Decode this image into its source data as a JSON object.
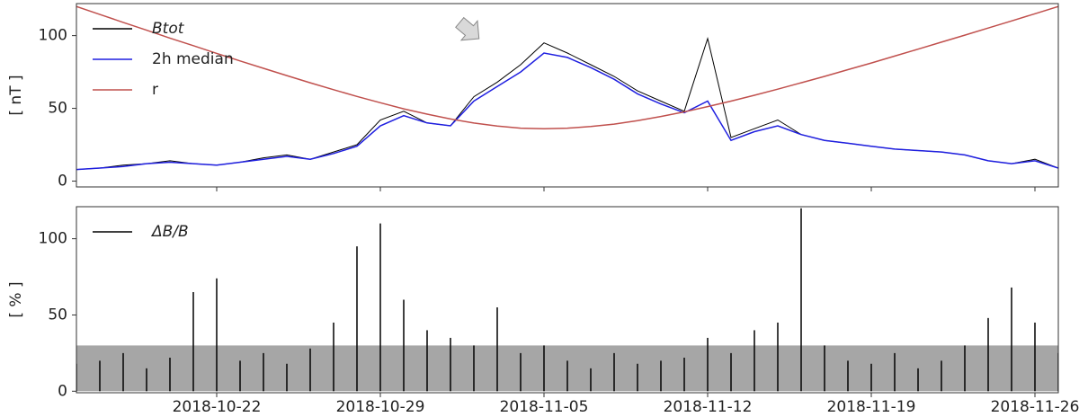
{
  "chart_data": [
    {
      "type": "line",
      "ylabel": "[ nT ]",
      "legend": "upper left",
      "x": [
        "2018-10-16",
        "2018-10-17",
        "2018-10-18",
        "2018-10-19",
        "2018-10-20",
        "2018-10-21",
        "2018-10-22",
        "2018-10-23",
        "2018-10-24",
        "2018-10-25",
        "2018-10-26",
        "2018-10-27",
        "2018-10-28",
        "2018-10-29",
        "2018-10-30",
        "2018-10-31",
        "2018-11-01",
        "2018-11-02",
        "2018-11-03",
        "2018-11-04",
        "2018-11-05",
        "2018-11-06",
        "2018-11-07",
        "2018-11-08",
        "2018-11-09",
        "2018-11-10",
        "2018-11-11",
        "2018-11-12",
        "2018-11-13",
        "2018-11-14",
        "2018-11-15",
        "2018-11-16",
        "2018-11-17",
        "2018-11-18",
        "2018-11-19",
        "2018-11-20",
        "2018-11-21",
        "2018-11-22",
        "2018-11-23",
        "2018-11-24",
        "2018-11-25",
        "2018-11-26",
        "2018-11-27"
      ],
      "xlim": [
        "2018-10-16",
        "2018-11-27"
      ],
      "ylim": [
        -4,
        122
      ],
      "yticks": [
        0,
        50,
        100
      ],
      "series": [
        {
          "name": "Btot",
          "color": "#000000",
          "values": [
            8,
            9,
            11,
            12,
            14,
            12,
            11,
            13,
            16,
            18,
            15,
            20,
            25,
            42,
            48,
            40,
            38,
            58,
            68,
            80,
            95,
            88,
            80,
            72,
            62,
            55,
            48,
            98,
            30,
            36,
            42,
            32,
            28,
            26,
            24,
            22,
            21,
            20,
            18,
            14,
            12,
            15,
            9
          ]
        },
        {
          "name": "2h median",
          "color": "#1f1fe0",
          "values": [
            8,
            9,
            10,
            12,
            13,
            12,
            11,
            13,
            15,
            17,
            15,
            19,
            24,
            38,
            45,
            40,
            38,
            55,
            65,
            75,
            88,
            85,
            78,
            70,
            60,
            53,
            47,
            55,
            28,
            34,
            38,
            32,
            28,
            26,
            24,
            22,
            21,
            20,
            18,
            14,
            12,
            14,
            9
          ]
        },
        {
          "name": "r",
          "color": "#c0504d",
          "values": [
            120,
            114.5,
            109.1,
            103.7,
            98.3,
            93.1,
            87.8,
            82.6,
            77.5,
            72.5,
            67.6,
            62.8,
            58.2,
            53.9,
            49.7,
            46,
            42.7,
            39.9,
            37.8,
            36.4,
            36,
            36.4,
            37.5,
            39.2,
            41.6,
            44.4,
            47.6,
            51.2,
            55,
            59,
            63.2,
            67.6,
            72,
            76.6,
            81.2,
            85.9,
            90.7,
            95.5,
            100.3,
            105.2,
            110.1,
            115,
            120
          ]
        }
      ]
    },
    {
      "type": "bar",
      "ylabel": "[ % ]",
      "legend": "upper left",
      "x": [
        "2018-10-16",
        "2018-10-17",
        "2018-10-18",
        "2018-10-19",
        "2018-10-20",
        "2018-10-21",
        "2018-10-22",
        "2018-10-23",
        "2018-10-24",
        "2018-10-25",
        "2018-10-26",
        "2018-10-27",
        "2018-10-28",
        "2018-10-29",
        "2018-10-30",
        "2018-10-31",
        "2018-11-01",
        "2018-11-02",
        "2018-11-03",
        "2018-11-04",
        "2018-11-05",
        "2018-11-06",
        "2018-11-07",
        "2018-11-08",
        "2018-11-09",
        "2018-11-10",
        "2018-11-11",
        "2018-11-12",
        "2018-11-13",
        "2018-11-14",
        "2018-11-15",
        "2018-11-16",
        "2018-11-17",
        "2018-11-18",
        "2018-11-19",
        "2018-11-20",
        "2018-11-21",
        "2018-11-22",
        "2018-11-23",
        "2018-11-24",
        "2018-11-25",
        "2018-11-26",
        "2018-11-27"
      ],
      "xlim": [
        "2018-10-16",
        "2018-11-27"
      ],
      "xticks": [
        "2018-10-22",
        "2018-10-29",
        "2018-11-05",
        "2018-11-12",
        "2018-11-19",
        "2018-11-26"
      ],
      "ylim": [
        -1,
        121
      ],
      "yticks": [
        0,
        50,
        100
      ],
      "band": [
        0,
        30
      ],
      "band_color": "#a6a6a6",
      "series": [
        {
          "name": "ΔB/B",
          "color": "#000000",
          "values": [
            18,
            20,
            25,
            15,
            22,
            65,
            74,
            20,
            25,
            18,
            28,
            45,
            95,
            110,
            60,
            40,
            35,
            30,
            55,
            25,
            30,
            20,
            15,
            25,
            18,
            20,
            22,
            35,
            25,
            40,
            45,
            120,
            30,
            20,
            18,
            25,
            15,
            20,
            30,
            48,
            68,
            45,
            25
          ]
        }
      ]
    }
  ]
}
